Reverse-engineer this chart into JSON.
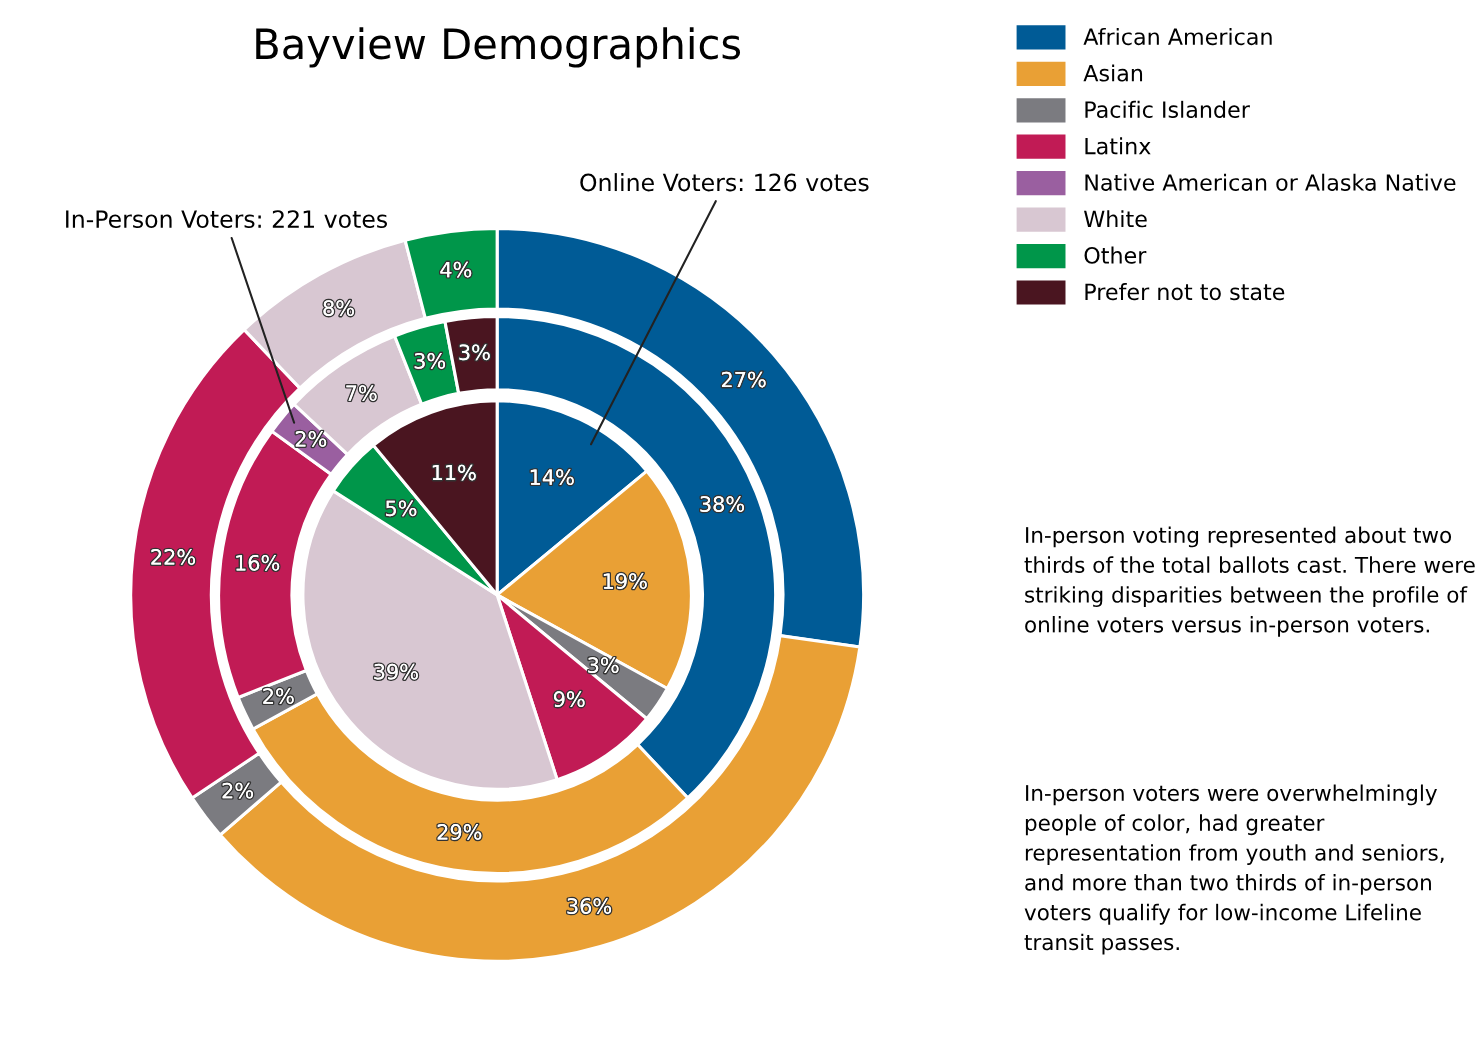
{
  "chart_data": {
    "type": "donut",
    "title": "Bayview Demographics",
    "categories": [
      "African American",
      "Asian",
      "Pacific Islander",
      "Latinx",
      "Native American or Alaska Native",
      "White",
      "Other",
      "Prefer not to state"
    ],
    "colors": [
      "#005b96",
      "#e9a035",
      "#7b7b80",
      "#c11b55",
      "#9a5fa0",
      "#d8c7d2",
      "#00964a",
      "#4a1520"
    ],
    "series": [
      {
        "values": [
          27,
          36,
          2,
          22,
          null,
          8,
          4,
          null
        ],
        "value_labels": [
          "27%",
          "36%",
          "2%",
          "22%",
          null,
          "8%",
          "4%",
          null
        ]
      },
      {
        "name": "In-Person Voters: 221 votes",
        "values": [
          38,
          29,
          2,
          16,
          2,
          7,
          3,
          3
        ],
        "value_labels": [
          "38%",
          "29%",
          "2%",
          "16%",
          "2%",
          "7%",
          "3%",
          "3%"
        ]
      },
      {
        "name": "Online Voters: 126 votes",
        "type": "pie",
        "values": [
          14,
          19,
          3,
          9,
          null,
          39,
          5,
          11
        ],
        "value_labels": [
          "14%",
          "19%",
          "3%",
          "9%",
          null,
          "39%",
          "5%",
          "11%"
        ]
      }
    ],
    "legend": "top right",
    "annotations": [
      "In-person voting represented about two thirds of the total ballots cast. There were striking disparities between the profile of online voters versus in-person voters.",
      "In-person voters were overwhelmingly people of color, had greater representation from youth and seniors, and more than two thirds of in-person voters qualify for low-income Lifeline transit passes."
    ]
  }
}
